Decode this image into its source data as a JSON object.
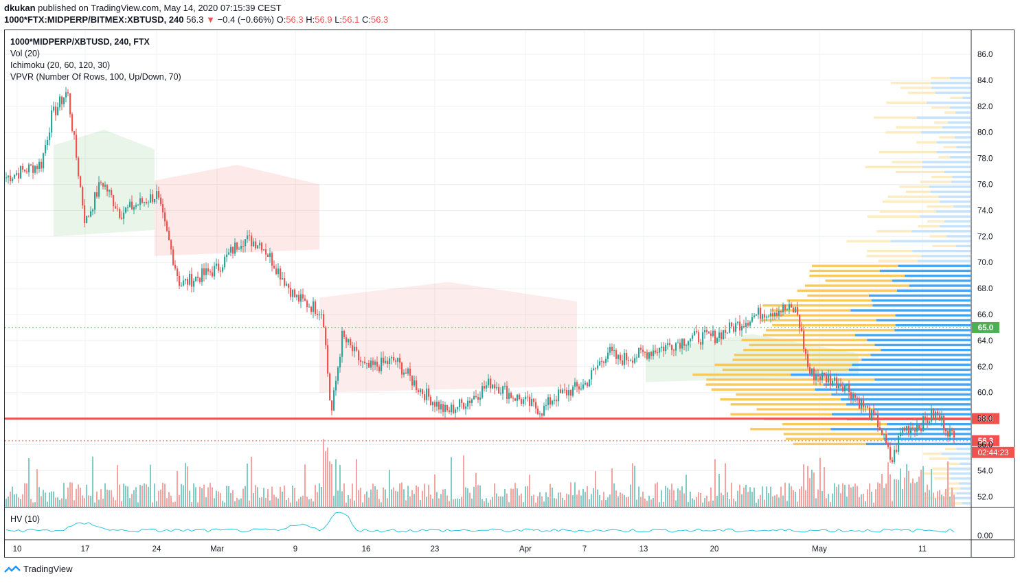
{
  "header": {
    "author": "dkukan",
    "published_text": "published on TradingView.com, May 14, 2020 07:15:39 CEST"
  },
  "ohlc_line": {
    "symbol": "1000*FTX:MIDPERP/BITMEX:XBTUSD, 240",
    "last": "56.3",
    "change": "−0.4 (−0.66%)",
    "o_label": "O:",
    "o": "56.3",
    "h_label": "H:",
    "h": "56.9",
    "l_label": "L:",
    "l": "56.1",
    "c_label": "C:",
    "c": "56.3"
  },
  "legend": {
    "title": "1000*MIDPERP/XBTUSD, 240, FTX",
    "vol": "Vol (20)",
    "ichimoku": "Ichimoku (20, 60, 120, 30)",
    "vpvr": "VPVR (Number Of Rows, 100, Up/Down, 70)"
  },
  "hv_panel": {
    "label": "HV (10)",
    "tick": "0.00"
  },
  "footer": {
    "logo_text": "TradingView"
  },
  "colors": {
    "up": "#26a69a",
    "down": "#ef5350",
    "hline_red": "#f23645",
    "hline_green": "#4caf50",
    "vpvr_up": "#f7c142",
    "vpvr_down": "#2196f3",
    "hv_line": "#26c6da"
  },
  "chart_data": {
    "type": "candlestick",
    "timeframe": "240",
    "y_ticks": [
      "86.0",
      "84.0",
      "82.0",
      "80.0",
      "78.0",
      "76.0",
      "74.0",
      "72.0",
      "70.0",
      "68.0",
      "66.0",
      "64.0",
      "62.0",
      "60.0",
      "58.0",
      "56.0",
      "54.0",
      "52.0"
    ],
    "x_ticks": [
      "10",
      "17",
      "24",
      "Mar",
      "9",
      "16",
      "23",
      "Apr",
      "7",
      "13",
      "20",
      "May",
      "11"
    ],
    "ylim": [
      51.0,
      87.5
    ],
    "price_path": [
      {
        "x": "10",
        "y": 76.5
      },
      {
        "x": "12",
        "y": 77.6
      },
      {
        "x": "13",
        "y": 81.2
      },
      {
        "x": "15",
        "y": 83.2
      },
      {
        "x": "16",
        "y": 78.5
      },
      {
        "x": "17",
        "y": 73.0
      },
      {
        "x": "19",
        "y": 76.3
      },
      {
        "x": "21",
        "y": 73.8
      },
      {
        "x": "24",
        "y": 75.2
      },
      {
        "x": "27",
        "y": 68.3
      },
      {
        "x": "Mar",
        "y": 69.5
      },
      {
        "x": "Mar 4",
        "y": 71.8
      },
      {
        "x": "Mar 6",
        "y": 71.5
      },
      {
        "x": "9",
        "y": 67.3
      },
      {
        "x": "11",
        "y": 66.2
      },
      {
        "x": "12",
        "y": 58.2
      },
      {
        "x": "13",
        "y": 64.3
      },
      {
        "x": "16",
        "y": 61.8
      },
      {
        "x": "18",
        "y": 62.5
      },
      {
        "x": "20",
        "y": 60.3
      },
      {
        "x": "23",
        "y": 58.5
      },
      {
        "x": "26",
        "y": 59.5
      },
      {
        "x": "28",
        "y": 60.8
      },
      {
        "x": "30",
        "y": 59.8
      },
      {
        "x": "Apr",
        "y": 58.6
      },
      {
        "x": "Apr 3",
        "y": 59.6
      },
      {
        "x": "7",
        "y": 60.6
      },
      {
        "x": "9",
        "y": 63.2
      },
      {
        "x": "10",
        "y": 62.5
      },
      {
        "x": "13",
        "y": 63.0
      },
      {
        "x": "17",
        "y": 64.2
      },
      {
        "x": "20",
        "y": 64.3
      },
      {
        "x": "24",
        "y": 66.2
      },
      {
        "x": "27",
        "y": 66.4
      },
      {
        "x": "29",
        "y": 66.3
      },
      {
        "x": "30",
        "y": 61.5
      },
      {
        "x": "May",
        "y": 61.3
      },
      {
        "x": "May 4",
        "y": 60.6
      },
      {
        "x": "7",
        "y": 57.5
      },
      {
        "x": "8",
        "y": 54.6
      },
      {
        "x": "9",
        "y": 57.2
      },
      {
        "x": "11",
        "y": 57.6
      },
      {
        "x": "12",
        "y": 58.4
      },
      {
        "x": "13",
        "y": 57.6
      },
      {
        "x": "14",
        "y": 56.3
      }
    ],
    "horizontal_lines": [
      {
        "price": 65.0,
        "style": "dotted",
        "color": "green",
        "label": "65.0"
      },
      {
        "price": 58.0,
        "style": "solid",
        "color": "red",
        "label": "58.0"
      },
      {
        "price": 56.3,
        "style": "dotted",
        "color": "red",
        "label": "56.3"
      }
    ],
    "last_price_label": "56.3",
    "countdown": "02:44:23"
  }
}
